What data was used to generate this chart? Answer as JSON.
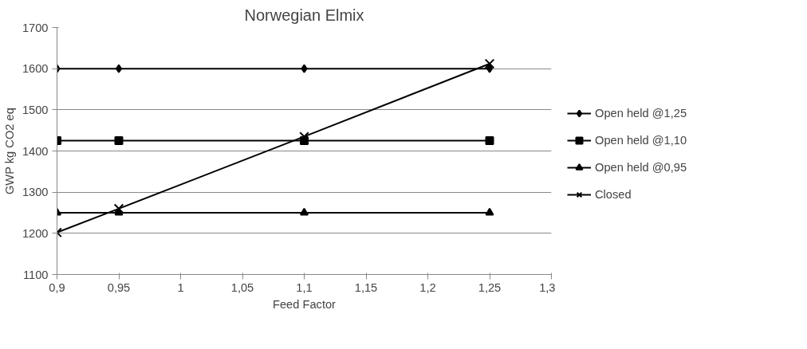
{
  "chart_data": {
    "type": "line",
    "title": "Norwegian Elmix",
    "xlabel": "Feed Factor",
    "ylabel": "GWP kg CO2 eq",
    "xlim": [
      0.9,
      1.3
    ],
    "xticks": [
      {
        "value": 0.9,
        "label": "0,9"
      },
      {
        "value": 0.95,
        "label": "0,95"
      },
      {
        "value": 1,
        "label": "1"
      },
      {
        "value": 1.05,
        "label": "1,05"
      },
      {
        "value": 1.1,
        "label": "1,1"
      },
      {
        "value": 1.15,
        "label": "1,15"
      },
      {
        "value": 1.2,
        "label": "1,2"
      },
      {
        "value": 1.25,
        "label": "1,25"
      },
      {
        "value": 1.3,
        "label": "1,3"
      }
    ],
    "ylim": [
      1100,
      1700
    ],
    "yticks": [
      1100,
      1200,
      1300,
      1400,
      1500,
      1600,
      1700
    ],
    "grid": "y",
    "legend": "right",
    "line_style": "solid",
    "series": [
      {
        "name": "Open held @1,25",
        "color": "#000000",
        "marker": "diamond",
        "x": [
          0.9,
          0.95,
          1.1,
          1.25
        ],
        "values": [
          1600,
          1600,
          1600,
          1600
        ]
      },
      {
        "name": "Open held @1,10",
        "color": "#000000",
        "marker": "square",
        "x": [
          0.9,
          0.95,
          1.1,
          1.25
        ],
        "values": [
          1425,
          1425,
          1425,
          1425
        ]
      },
      {
        "name": "Open held @0,95",
        "color": "#000000",
        "marker": "triangle",
        "x": [
          0.9,
          0.95,
          1.1,
          1.25
        ],
        "values": [
          1250,
          1250,
          1250,
          1250
        ]
      },
      {
        "name": "Closed",
        "color": "#000000",
        "marker": "cross",
        "x": [
          0.9,
          0.95,
          1.1,
          1.25
        ],
        "values": [
          1202,
          1260,
          1435,
          1612
        ]
      }
    ]
  }
}
